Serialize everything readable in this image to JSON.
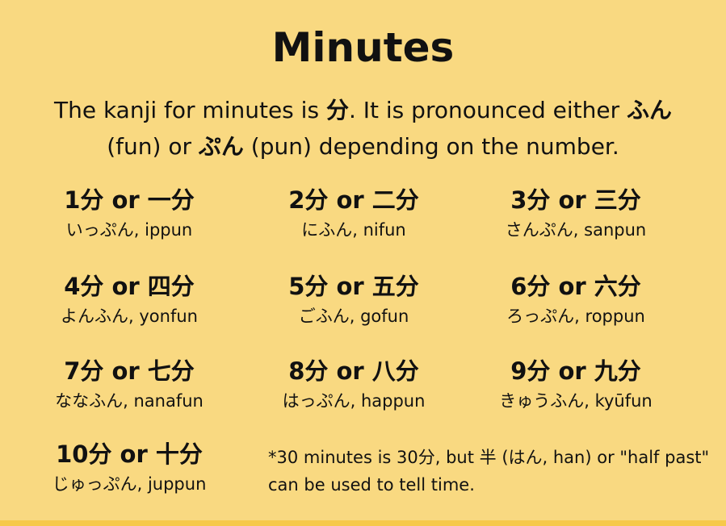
{
  "title": "Minutes",
  "intro": {
    "part1": "The kanji for minutes is ",
    "kanji": "分",
    "part2": ". It is pronounced either ",
    "fun_kana": "ふん",
    "part3": " (fun) or ",
    "pun_kana": "ぷん",
    "part4": " (pun) depending on the number."
  },
  "items": [
    {
      "heading": "1分 or 一分",
      "reading": "いっぷん, ippun"
    },
    {
      "heading": "2分 or 二分",
      "reading": "にふん, nifun"
    },
    {
      "heading": "3分 or 三分",
      "reading": "さんぷん, sanpun"
    },
    {
      "heading": "4分 or 四分",
      "reading": "よんふん, yonfun"
    },
    {
      "heading": "5分 or 五分",
      "reading": "ごふん, gofun"
    },
    {
      "heading": "6分 or 六分",
      "reading": "ろっぷん, roppun"
    },
    {
      "heading": "7分 or 七分",
      "reading": "ななふん, nanafun"
    },
    {
      "heading": "8分 or 八分",
      "reading": "はっぷん, happun"
    },
    {
      "heading": "9分 or 九分",
      "reading": "きゅうふん, kyūfun"
    },
    {
      "heading": "10分 or 十分",
      "reading": "じゅっぷん, juppun"
    }
  ],
  "note": "*30 minutes is 30分, but 半 (はん, han) or \"half past\" can be used to tell time.",
  "colors": {
    "background": "#f9d981",
    "strip": "#f6c94a",
    "text": "#111111"
  }
}
